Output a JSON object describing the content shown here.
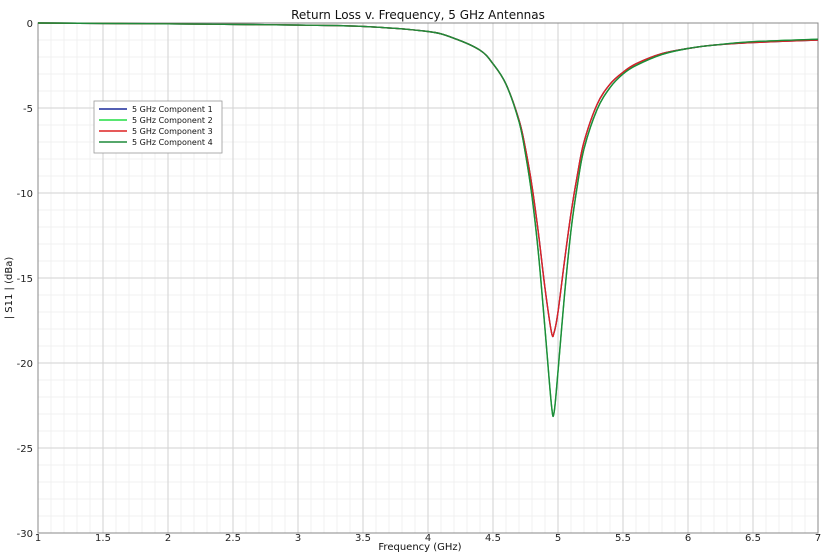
{
  "chart_data": {
    "type": "line",
    "title": "Return Loss v. Frequency, 5 GHz Antennas",
    "xlabel": "Frequency (GHz)",
    "ylabel": "| S11 | (dBa)",
    "xlim": [
      1,
      7
    ],
    "ylim": [
      -30,
      0
    ],
    "x_ticks": [
      "1",
      "1.5",
      "2",
      "2.5",
      "3",
      "3.5",
      "4",
      "4.5",
      "5",
      "5.5",
      "6",
      "6.5",
      "7"
    ],
    "y_ticks": [
      "0",
      "-5",
      "-10",
      "-15",
      "-20",
      "-25",
      "-30"
    ],
    "grid": true,
    "legend_position": "upper-left",
    "series": [
      {
        "name": "5 GHz Component 1",
        "color": "#1a2a9a",
        "x": [
          1.0,
          2.0,
          3.0,
          3.5,
          4.0,
          4.2,
          4.4,
          4.5,
          4.6,
          4.7,
          4.75,
          4.8,
          4.85,
          4.9,
          4.95,
          4.97,
          5.0,
          5.05,
          5.1,
          5.15,
          5.2,
          5.3,
          5.4,
          5.5,
          5.6,
          5.8,
          6.0,
          6.2,
          6.5,
          7.0
        ],
        "y": [
          0.0,
          -0.05,
          -0.12,
          -0.2,
          -0.5,
          -0.9,
          -1.6,
          -2.4,
          -3.6,
          -5.7,
          -7.4,
          -9.6,
          -12.4,
          -15.6,
          -18.2,
          -18.2,
          -17.0,
          -14.0,
          -11.2,
          -8.9,
          -7.0,
          -4.8,
          -3.6,
          -2.9,
          -2.4,
          -1.8,
          -1.5,
          -1.3,
          -1.15,
          -1.0
        ]
      },
      {
        "name": "5 GHz Component 2",
        "color": "#22dd44",
        "x": [
          1.0,
          2.0,
          3.0,
          3.5,
          4.0,
          4.2,
          4.4,
          4.5,
          4.6,
          4.7,
          4.75,
          4.8,
          4.85,
          4.9,
          4.95,
          4.97,
          5.0,
          5.05,
          5.1,
          5.15,
          5.2,
          5.3,
          5.4,
          5.5,
          5.6,
          5.8,
          6.0,
          6.2,
          6.5,
          7.0
        ],
        "y": [
          0.0,
          -0.05,
          -0.12,
          -0.2,
          -0.5,
          -0.9,
          -1.6,
          -2.4,
          -3.6,
          -5.8,
          -7.7,
          -10.2,
          -13.6,
          -18.0,
          -22.5,
          -22.9,
          -20.5,
          -16.0,
          -12.2,
          -9.5,
          -7.4,
          -5.1,
          -3.8,
          -3.0,
          -2.5,
          -1.85,
          -1.5,
          -1.3,
          -1.1,
          -0.95
        ]
      },
      {
        "name": "5 GHz Component 3",
        "color": "#dd2222",
        "x": [
          1.0,
          2.0,
          3.0,
          3.5,
          4.0,
          4.2,
          4.4,
          4.5,
          4.6,
          4.7,
          4.75,
          4.8,
          4.85,
          4.9,
          4.95,
          4.97,
          5.0,
          5.05,
          5.1,
          5.15,
          5.2,
          5.3,
          5.4,
          5.5,
          5.6,
          5.8,
          6.0,
          6.2,
          6.5,
          7.0
        ],
        "y": [
          0.0,
          -0.05,
          -0.12,
          -0.2,
          -0.5,
          -0.9,
          -1.6,
          -2.4,
          -3.6,
          -5.7,
          -7.4,
          -9.6,
          -12.4,
          -15.6,
          -18.2,
          -18.2,
          -17.0,
          -14.0,
          -11.2,
          -8.9,
          -7.0,
          -4.8,
          -3.6,
          -2.9,
          -2.4,
          -1.8,
          -1.5,
          -1.3,
          -1.15,
          -1.0
        ]
      },
      {
        "name": "5 GHz Component 4",
        "color": "#1e8a3a",
        "x": [
          1.0,
          2.0,
          3.0,
          3.5,
          4.0,
          4.2,
          4.4,
          4.5,
          4.6,
          4.7,
          4.75,
          4.8,
          4.85,
          4.9,
          4.95,
          4.97,
          5.0,
          5.05,
          5.1,
          5.15,
          5.2,
          5.3,
          5.4,
          5.5,
          5.6,
          5.8,
          6.0,
          6.2,
          6.5,
          7.0
        ],
        "y": [
          0.0,
          -0.05,
          -0.12,
          -0.2,
          -0.5,
          -0.9,
          -1.6,
          -2.4,
          -3.6,
          -5.8,
          -7.7,
          -10.2,
          -13.6,
          -18.0,
          -22.5,
          -22.9,
          -20.5,
          -16.0,
          -12.2,
          -9.5,
          -7.4,
          -5.1,
          -3.8,
          -3.0,
          -2.5,
          -1.85,
          -1.5,
          -1.3,
          -1.1,
          -0.95
        ]
      }
    ]
  }
}
